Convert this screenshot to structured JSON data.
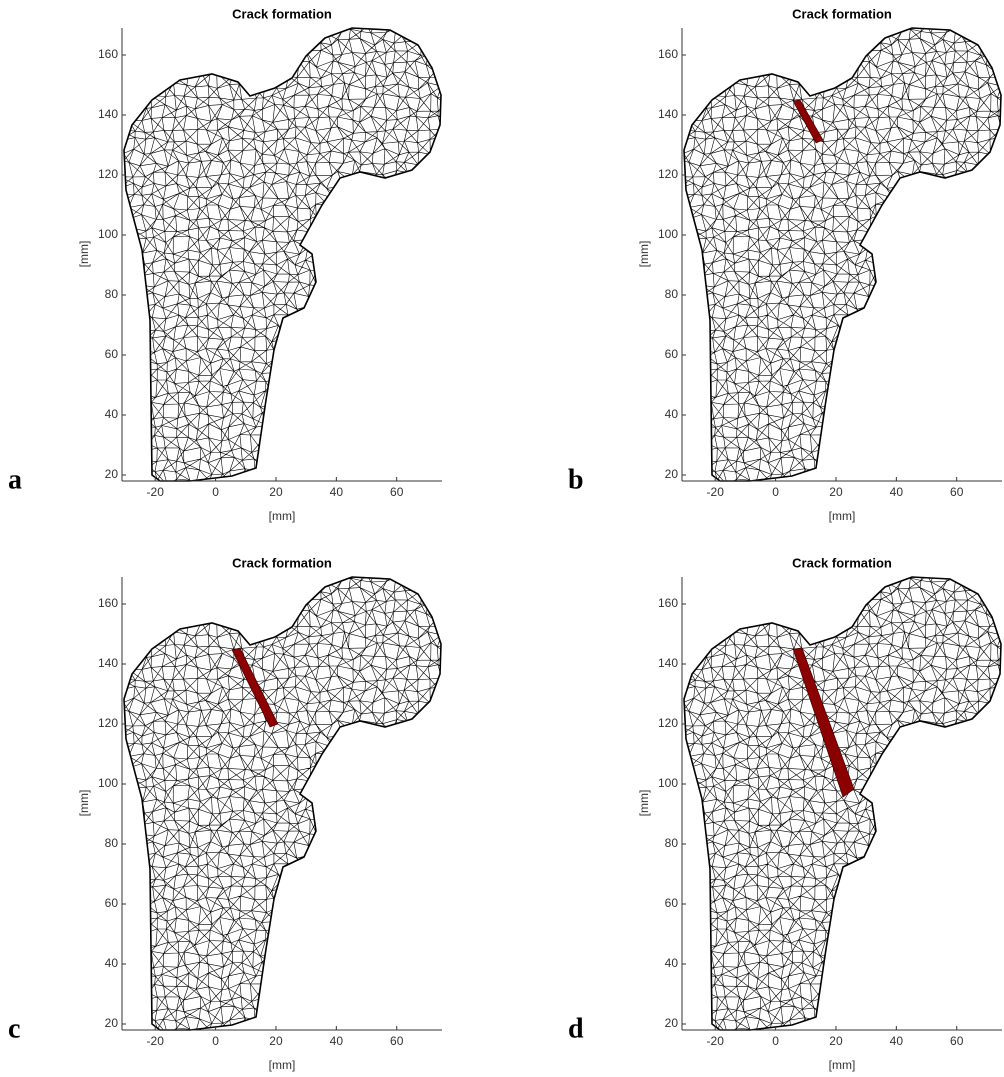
{
  "chart_data": [
    {
      "type": "mesh",
      "label": "a",
      "title": "Crack formation",
      "xlabel": "[mm]",
      "ylabel": "[mm]",
      "color": "#000000",
      "xlim": [
        -31,
        75
      ],
      "ylim": [
        18,
        169
      ],
      "xticks": [
        -20,
        0,
        20,
        40,
        60
      ],
      "yticks": [
        20,
        40,
        60,
        80,
        100,
        120,
        140,
        160
      ]
    },
    {
      "type": "mesh",
      "label": "b",
      "title": "Crack formation",
      "xlabel": "[mm]",
      "ylabel": "[mm]",
      "color": "#000000",
      "crack_color": "#8b0000",
      "xlim": [
        -31,
        75
      ],
      "ylim": [
        18,
        169
      ],
      "xticks": [
        -20,
        0,
        20,
        40,
        60
      ],
      "yticks": [
        20,
        40,
        60,
        80,
        100,
        120,
        140,
        160
      ]
    },
    {
      "type": "mesh",
      "label": "c",
      "title": "Crack formation",
      "xlabel": "[mm]",
      "ylabel": "[mm]",
      "color": "#000000",
      "crack_color": "#8b0000",
      "xlim": [
        -31,
        75
      ],
      "ylim": [
        18,
        169
      ],
      "xticks": [
        -20,
        0,
        20,
        40,
        60
      ],
      "yticks": [
        20,
        40,
        60,
        80,
        100,
        120,
        140,
        160
      ]
    },
    {
      "type": "mesh",
      "label": "d",
      "title": "Crack formation",
      "xlabel": "[mm]",
      "ylabel": "[mm]",
      "color": "#000000",
      "crack_color": "#8b0000",
      "xlim": [
        -31,
        75
      ],
      "ylim": [
        18,
        169
      ],
      "xticks": [
        -20,
        0,
        20,
        40,
        60
      ],
      "yticks": [
        20,
        40,
        60,
        80,
        100,
        120,
        140,
        160
      ]
    }
  ]
}
